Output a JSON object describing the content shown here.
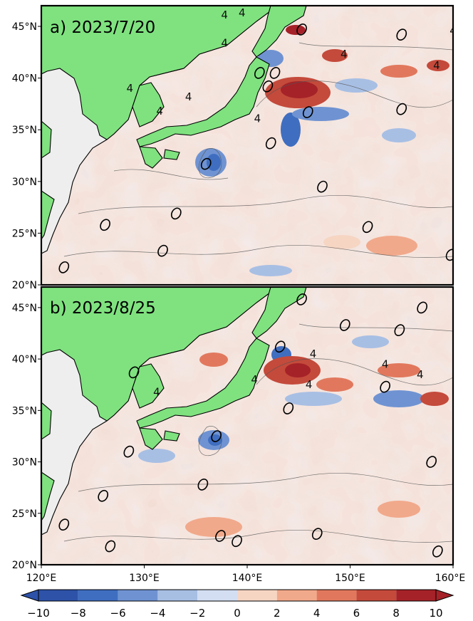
{
  "panels": [
    {
      "id": "a",
      "label": "a) 2023/7/20",
      "contour_labels": [
        {
          "text": "4",
          "lon": 137.8,
          "lat": 46.1
        },
        {
          "text": "4",
          "lon": 139.5,
          "lat": 46.3
        },
        {
          "text": "4",
          "lon": 137.8,
          "lat": 43.4
        },
        {
          "text": "4",
          "lon": 160.0,
          "lat": 44.6
        },
        {
          "text": "4",
          "lon": 149.4,
          "lat": 42.3
        },
        {
          "text": "4",
          "lon": 158.4,
          "lat": 41.2
        },
        {
          "text": "4",
          "lon": 128.6,
          "lat": 39.0
        },
        {
          "text": "4",
          "lon": 134.3,
          "lat": 38.2
        },
        {
          "text": "4",
          "lon": 131.5,
          "lat": 36.8
        },
        {
          "text": "4",
          "lon": 141.0,
          "lat": 36.1
        }
      ],
      "ellipses": [
        {
          "lon": 145.3,
          "lat": 44.7
        },
        {
          "lon": 155.0,
          "lat": 44.2
        },
        {
          "lon": 141.2,
          "lat": 40.5
        },
        {
          "lon": 142.7,
          "lat": 40.5
        },
        {
          "lon": 142.0,
          "lat": 39.2
        },
        {
          "lon": 145.9,
          "lat": 36.7
        },
        {
          "lon": 155.0,
          "lat": 37.0
        },
        {
          "lon": 142.3,
          "lat": 33.7
        },
        {
          "lon": 136.0,
          "lat": 31.7
        },
        {
          "lon": 147.3,
          "lat": 29.5
        },
        {
          "lon": 133.1,
          "lat": 26.9
        },
        {
          "lon": 126.2,
          "lat": 25.8
        },
        {
          "lon": 151.7,
          "lat": 25.6
        },
        {
          "lon": 131.8,
          "lat": 23.3
        },
        {
          "lon": 122.2,
          "lat": 21.7
        },
        {
          "lon": 159.8,
          "lat": 22.9
        }
      ]
    },
    {
      "id": "b",
      "label": "b) 2023/8/25",
      "contour_labels": [
        {
          "text": "4",
          "lon": 146.4,
          "lat": 40.5
        },
        {
          "text": "4",
          "lon": 153.4,
          "lat": 39.5
        },
        {
          "text": "4",
          "lon": 156.8,
          "lat": 38.5
        },
        {
          "text": "4",
          "lon": 131.2,
          "lat": 36.8
        },
        {
          "text": "4",
          "lon": 140.7,
          "lat": 38.0
        },
        {
          "text": "4",
          "lon": 146.0,
          "lat": 37.5
        }
      ],
      "ellipses": [
        {
          "lon": 145.3,
          "lat": 45.8
        },
        {
          "lon": 157.0,
          "lat": 45.0
        },
        {
          "lon": 149.5,
          "lat": 43.3
        },
        {
          "lon": 154.8,
          "lat": 42.8
        },
        {
          "lon": 143.2,
          "lat": 41.2
        },
        {
          "lon": 129.0,
          "lat": 38.7
        },
        {
          "lon": 153.4,
          "lat": 37.3
        },
        {
          "lon": 144.0,
          "lat": 35.2
        },
        {
          "lon": 137.0,
          "lat": 32.5
        },
        {
          "lon": 128.5,
          "lat": 31.0
        },
        {
          "lon": 157.9,
          "lat": 30.0
        },
        {
          "lon": 135.7,
          "lat": 27.8
        },
        {
          "lon": 126.0,
          "lat": 26.7
        },
        {
          "lon": 122.2,
          "lat": 23.9
        },
        {
          "lon": 137.4,
          "lat": 22.8
        },
        {
          "lon": 146.8,
          "lat": 23.0
        },
        {
          "lon": 139.0,
          "lat": 22.3
        },
        {
          "lon": 126.7,
          "lat": 21.8
        },
        {
          "lon": 158.5,
          "lat": 21.3
        }
      ]
    }
  ],
  "axes": {
    "lon_range": [
      120,
      160
    ],
    "lat_range": [
      20,
      47
    ],
    "lon_ticks": [
      "120°E",
      "130°E",
      "140°E",
      "150°E",
      "160°E"
    ],
    "lat_ticks": [
      "20°N",
      "25°N",
      "30°N",
      "35°N",
      "40°N",
      "45°N"
    ]
  },
  "colorbar": {
    "range": [
      -10,
      10
    ],
    "ticks": [
      "−10",
      "−8",
      "−6",
      "−4",
      "−2",
      "0",
      "2",
      "4",
      "6",
      "8",
      "10"
    ],
    "colors": [
      "#2d52a8",
      "#3f6ec0",
      "#6f93d2",
      "#a8bfe4",
      "#d3def2",
      "#f6d5c3",
      "#f1a98b",
      "#e1785d",
      "#c44a3b",
      "#a52228"
    ]
  },
  "land_color": "#7fe27f",
  "land_outside_color": "#eeeeee"
}
